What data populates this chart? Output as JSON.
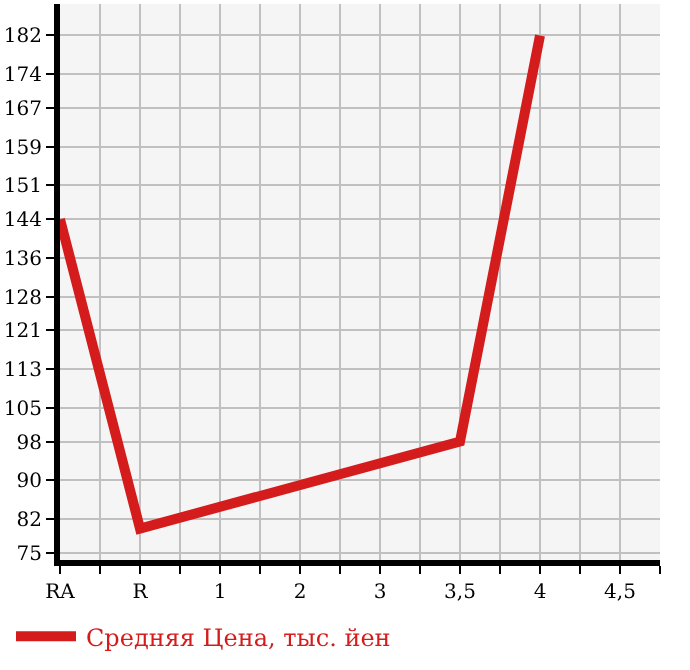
{
  "chart_data": {
    "type": "line",
    "categories": [
      "RA",
      "R",
      "1",
      "2",
      "3",
      "3,5",
      "4",
      "4,5"
    ],
    "series": [
      {
        "name": "Средняя Цена, тыс. йен",
        "color": "#d41c1c",
        "values": [
          144,
          80,
          null,
          null,
          null,
          98,
          182,
          null
        ]
      }
    ],
    "ylim": [
      73.5,
      188.5
    ],
    "yticks": [
      75,
      82,
      90,
      98,
      105,
      113,
      121,
      128,
      136,
      144,
      151,
      159,
      167,
      174,
      182
    ],
    "grid": true,
    "legend": "bottom left",
    "marker": "none",
    "line_style": "solid"
  }
}
